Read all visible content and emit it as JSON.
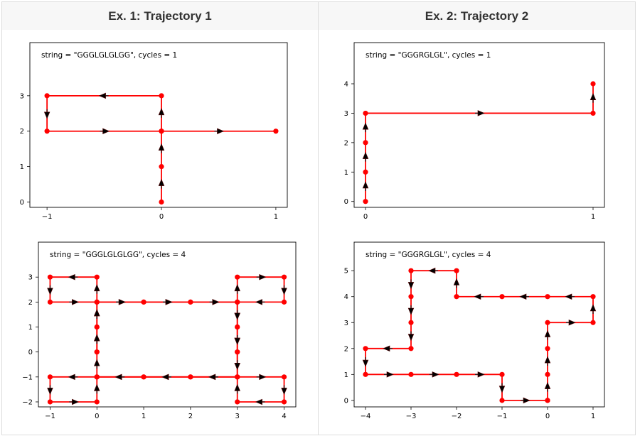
{
  "columns": [
    {
      "header": "Ex. 1: Trajectory 1"
    },
    {
      "header": "Ex. 2: Trajectory 2"
    }
  ],
  "colors": {
    "line": "#ff0000",
    "point": "#ff0000",
    "arrow": "#000000",
    "border": "#dddddd",
    "header_bg": "#f7f7f7"
  },
  "chart_data": [
    {
      "type": "line",
      "annotation": "string = \"GGGLGLGLGG\", cycles = 1",
      "x_ticks": [
        "−1",
        "0",
        "1"
      ],
      "x_tick_values": [
        -1,
        0,
        1
      ],
      "y_ticks": [
        "0",
        "1",
        "2",
        "3"
      ],
      "y_tick_values": [
        0,
        1,
        2,
        3
      ],
      "xlim": [
        -1.15,
        1.1
      ],
      "ylim": [
        -0.15,
        4.5
      ],
      "points": [
        [
          0,
          0
        ],
        [
          0,
          1
        ],
        [
          0,
          2
        ],
        [
          0,
          3
        ],
        [
          -1,
          3
        ],
        [
          -1,
          2
        ],
        [
          0,
          2
        ],
        [
          1,
          2
        ]
      ]
    },
    {
      "type": "line",
      "annotation": "string = \"GGGRGLGL\", cycles = 1",
      "x_ticks": [
        "0",
        "1"
      ],
      "x_tick_values": [
        0,
        1
      ],
      "y_ticks": [
        "0",
        "1",
        "2",
        "3",
        "4"
      ],
      "y_tick_values": [
        0,
        1,
        2,
        3,
        4
      ],
      "xlim": [
        -0.05,
        1.05
      ],
      "ylim": [
        -0.2,
        5.4
      ],
      "points": [
        [
          0,
          0
        ],
        [
          0,
          1
        ],
        [
          0,
          2
        ],
        [
          0,
          3
        ],
        [
          1,
          3
        ],
        [
          1,
          4
        ]
      ]
    },
    {
      "type": "line",
      "annotation": "string = \"GGGLGLGLGG\", cycles = 4",
      "x_ticks": [
        "−1",
        "0",
        "1",
        "2",
        "3",
        "4"
      ],
      "x_tick_values": [
        -1,
        0,
        1,
        2,
        3,
        4
      ],
      "y_ticks": [
        "−2",
        "−1",
        "0",
        "1",
        "2",
        "3"
      ],
      "y_tick_values": [
        -2,
        -1,
        0,
        1,
        2,
        3
      ],
      "xlim": [
        -1.25,
        4.25
      ],
      "ylim": [
        -2.2,
        4.4
      ],
      "points": [
        [
          0,
          0
        ],
        [
          0,
          1
        ],
        [
          0,
          2
        ],
        [
          0,
          3
        ],
        [
          -1,
          3
        ],
        [
          -1,
          2
        ],
        [
          0,
          2
        ],
        [
          1,
          2
        ],
        [
          2,
          2
        ],
        [
          3,
          2
        ],
        [
          3,
          1
        ],
        [
          3,
          0
        ],
        [
          3,
          -1
        ],
        [
          4,
          -1
        ],
        [
          4,
          -2
        ],
        [
          3,
          -2
        ],
        [
          3,
          -1
        ],
        [
          2,
          -1
        ],
        [
          1,
          -1
        ],
        [
          0,
          -1
        ],
        [
          -1,
          -1
        ],
        [
          -1,
          -2
        ],
        [
          0,
          -2
        ],
        [
          0,
          -1
        ],
        [
          0,
          0
        ],
        [
          0,
          1
        ],
        [
          0,
          2
        ],
        [
          1,
          2
        ],
        [
          2,
          2
        ],
        [
          3,
          2
        ],
        [
          3,
          3
        ],
        [
          4,
          3
        ],
        [
          4,
          2
        ],
        [
          3,
          2
        ],
        [
          3,
          1
        ],
        [
          3,
          0
        ],
        [
          3,
          -1
        ],
        [
          2,
          -1
        ],
        [
          1,
          -1
        ],
        [
          0,
          -1
        ]
      ]
    },
    {
      "type": "line",
      "annotation": "string = \"GGGRGLGL\", cycles = 4",
      "x_ticks": [
        "−4",
        "−3",
        "−2",
        "−1",
        "0",
        "1"
      ],
      "x_tick_values": [
        -4,
        -3,
        -2,
        -1,
        0,
        1
      ],
      "y_ticks": [
        "0",
        "1",
        "2",
        "3",
        "4",
        "5"
      ],
      "y_tick_values": [
        0,
        1,
        2,
        3,
        4,
        5
      ],
      "xlim": [
        -4.25,
        1.25
      ],
      "ylim": [
        -0.25,
        6.1
      ],
      "points": [
        [
          0,
          0
        ],
        [
          0,
          1
        ],
        [
          0,
          2
        ],
        [
          0,
          3
        ],
        [
          1,
          3
        ],
        [
          1,
          4
        ],
        [
          0,
          4
        ],
        [
          -1,
          4
        ],
        [
          -2,
          4
        ],
        [
          -2,
          5
        ],
        [
          -3,
          5
        ],
        [
          -3,
          4
        ],
        [
          -3,
          3
        ],
        [
          -3,
          2
        ],
        [
          -4,
          2
        ],
        [
          -4,
          1
        ],
        [
          -3,
          1
        ],
        [
          -2,
          1
        ],
        [
          -1,
          1
        ],
        [
          -1,
          0
        ],
        [
          0,
          0
        ]
      ]
    }
  ]
}
